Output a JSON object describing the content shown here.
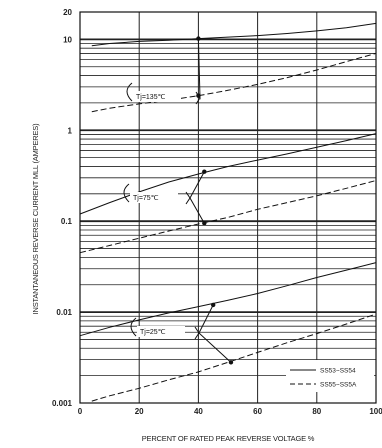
{
  "chart_data": {
    "type": "line",
    "title": "",
    "xlabel": "PERCENT OF RATED PEAK REVERSE VOLTAGE %",
    "ylabel": "INSTANTANEOUS REVERSE CURRENT MLL (AMPERES)",
    "xlim": [
      0,
      100
    ],
    "ylim": [
      0.001,
      20
    ],
    "yscale": "log",
    "grid": true,
    "x_ticks": [
      0,
      20,
      40,
      60,
      80,
      100
    ],
    "x_tick_labels": [
      "0",
      "20",
      "40",
      "60",
      "80",
      "100"
    ],
    "y_ticks": [
      0.001,
      0.01,
      0.1,
      1,
      10,
      20
    ],
    "y_tick_labels": [
      "0.001",
      "0.01",
      "0.1",
      "1",
      "10",
      "20"
    ],
    "series": [
      {
        "name": "SS53~SS54",
        "style": "solid",
        "temperature": "Tj=135℃",
        "x": [
          4,
          10,
          20,
          30,
          40,
          50,
          60,
          70,
          80,
          90,
          100
        ],
        "y": [
          8.5,
          9.0,
          9.5,
          9.8,
          10.2,
          10.6,
          11.0,
          11.6,
          12.4,
          13.4,
          15.0
        ]
      },
      {
        "name": "SS55~SS5A",
        "style": "dashed",
        "temperature": "Tj=135℃",
        "x": [
          4,
          10,
          20,
          30,
          40,
          50,
          60,
          70,
          80,
          90,
          100
        ],
        "y": [
          1.6,
          1.75,
          1.95,
          2.15,
          2.4,
          2.75,
          3.2,
          3.8,
          4.6,
          5.7,
          7.0
        ]
      },
      {
        "name": "SS53~SS54",
        "style": "solid",
        "temperature": "Tj=75℃",
        "x": [
          0,
          10,
          20,
          30,
          40,
          50,
          60,
          70,
          80,
          90,
          100
        ],
        "y": [
          0.12,
          0.16,
          0.21,
          0.27,
          0.33,
          0.4,
          0.47,
          0.55,
          0.65,
          0.77,
          0.92
        ]
      },
      {
        "name": "SS55~SS5A",
        "style": "dashed",
        "temperature": "Tj=75℃",
        "x": [
          0,
          10,
          20,
          30,
          40,
          50,
          60,
          70,
          80,
          90,
          100
        ],
        "y": [
          0.045,
          0.054,
          0.065,
          0.078,
          0.093,
          0.11,
          0.135,
          0.16,
          0.19,
          0.23,
          0.28
        ]
      },
      {
        "name": "SS53~SS54",
        "style": "solid",
        "temperature": "Tj=25℃",
        "x": [
          0,
          10,
          20,
          30,
          40,
          50,
          60,
          70,
          80,
          90,
          100
        ],
        "y": [
          0.0055,
          0.0068,
          0.0082,
          0.0098,
          0.0115,
          0.0135,
          0.016,
          0.0195,
          0.024,
          0.029,
          0.035
        ]
      },
      {
        "name": "SS55~SS5A",
        "style": "dashed",
        "temperature": "Tj=25℃",
        "x": [
          4,
          10,
          20,
          30,
          40,
          50,
          60,
          70,
          80,
          90,
          100
        ],
        "y": [
          0.00105,
          0.0012,
          0.00145,
          0.0018,
          0.0022,
          0.0028,
          0.0036,
          0.0046,
          0.0058,
          0.0074,
          0.0095
        ]
      }
    ],
    "annotations": [
      {
        "text": "Tj=135℃",
        "point_solid": [
          40,
          10.2
        ],
        "point_dashed": [
          40,
          2.4
        ]
      },
      {
        "text": "Tj=75℃",
        "point_solid": [
          42,
          0.35
        ],
        "point_dashed": [
          42,
          0.095
        ]
      },
      {
        "text": "Tj=25℃",
        "point_solid": [
          45,
          0.012
        ],
        "point_dashed": [
          51,
          0.0028
        ]
      }
    ],
    "legend": {
      "placement": "bottom-right",
      "entries": [
        {
          "label": "SS53~SS54",
          "style": "solid"
        },
        {
          "label": "SS55~SS5A",
          "style": "dashed"
        }
      ]
    }
  }
}
